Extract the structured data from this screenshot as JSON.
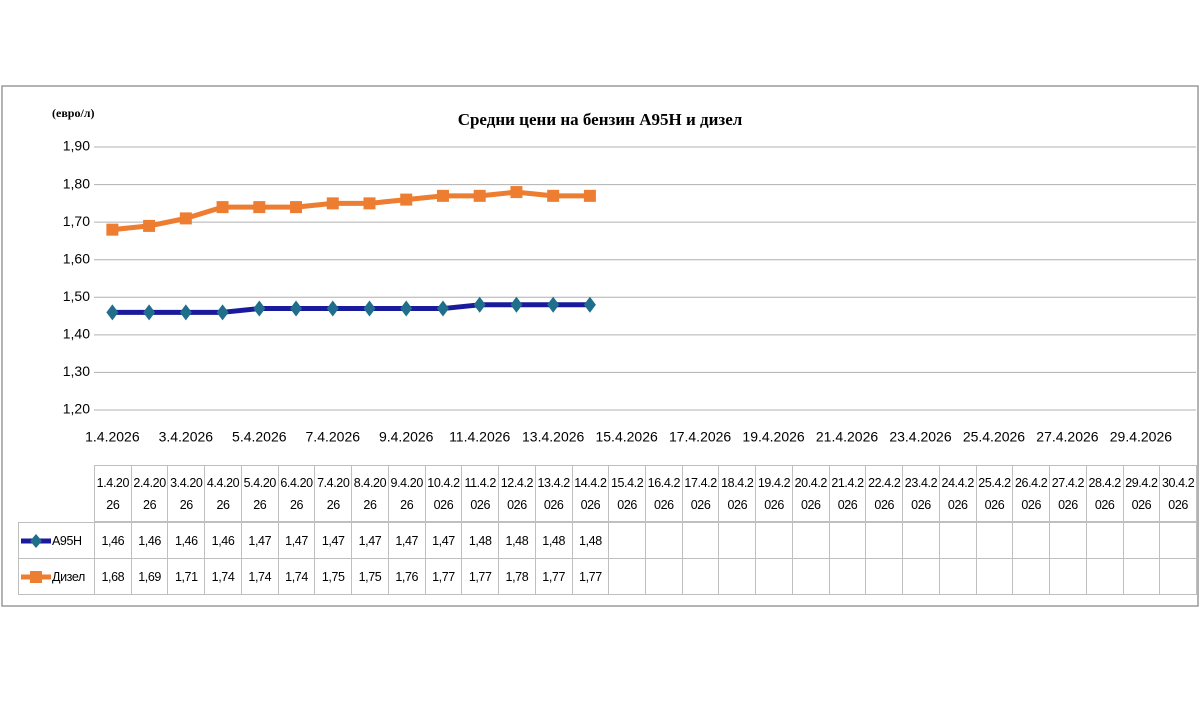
{
  "chart_data": {
    "type": "line",
    "title": "Средни цени на бензин А95Н и дизел",
    "y_label": "(евро/л)",
    "categories": [
      "1.4.2026",
      "2.4.2026",
      "3.4.2026",
      "4.4.2026",
      "5.4.2026",
      "6.4.2026",
      "7.4.2026",
      "8.4.2026",
      "9.4.2026",
      "10.4.2026",
      "11.4.2026",
      "12.4.2026",
      "13.4.2026",
      "14.4.2026",
      "15.4.2026",
      "16.4.2026",
      "17.4.2026",
      "18.4.2026",
      "19.4.2026",
      "20.4.2026",
      "21.4.2026",
      "22.4.2026",
      "23.4.2026",
      "24.4.2026",
      "25.4.2026",
      "26.4.2026",
      "27.4.2026",
      "28.4.2026",
      "29.4.2026",
      "30.4.2026"
    ],
    "series": [
      {
        "name": "А95Н",
        "color": "#1a1a9c",
        "marker_color": "#1f6e8c",
        "marker": "diamond",
        "values": [
          1.46,
          1.46,
          1.46,
          1.46,
          1.47,
          1.47,
          1.47,
          1.47,
          1.47,
          1.47,
          1.48,
          1.48,
          1.48,
          1.48,
          null,
          null,
          null,
          null,
          null,
          null,
          null,
          null,
          null,
          null,
          null,
          null,
          null,
          null,
          null,
          null
        ],
        "value_labels": [
          "1,46",
          "1,46",
          "1,46",
          "1,46",
          "1,47",
          "1,47",
          "1,47",
          "1,47",
          "1,47",
          "1,47",
          "1,48",
          "1,48",
          "1,48",
          "1,48",
          null,
          null,
          null,
          null,
          null,
          null,
          null,
          null,
          null,
          null,
          null,
          null,
          null,
          null,
          null,
          null
        ]
      },
      {
        "name": "Дизел",
        "color": "#ed7d31",
        "marker_color": "#ed7d31",
        "marker": "square",
        "values": [
          1.68,
          1.69,
          1.71,
          1.74,
          1.74,
          1.74,
          1.75,
          1.75,
          1.76,
          1.77,
          1.77,
          1.78,
          1.77,
          1.77,
          null,
          null,
          null,
          null,
          null,
          null,
          null,
          null,
          null,
          null,
          null,
          null,
          null,
          null,
          null,
          null
        ],
        "value_labels": [
          "1,68",
          "1,69",
          "1,71",
          "1,74",
          "1,74",
          "1,74",
          "1,75",
          "1,75",
          "1,76",
          "1,77",
          "1,77",
          "1,78",
          "1,77",
          "1,77",
          null,
          null,
          null,
          null,
          null,
          null,
          null,
          null,
          null,
          null,
          null,
          null,
          null,
          null,
          null,
          null
        ]
      }
    ],
    "ylim": [
      1.2,
      1.9
    ],
    "yticks": [
      {
        "value": 1.2,
        "label": "1,20"
      },
      {
        "value": 1.3,
        "label": "1,30"
      },
      {
        "value": 1.4,
        "label": "1,40"
      },
      {
        "value": 1.5,
        "label": "1,50"
      },
      {
        "value": 1.6,
        "label": "1,60"
      },
      {
        "value": 1.7,
        "label": "1,70"
      },
      {
        "value": 1.8,
        "label": "1,80"
      },
      {
        "value": 1.9,
        "label": "1,90"
      }
    ],
    "grid": true
  }
}
